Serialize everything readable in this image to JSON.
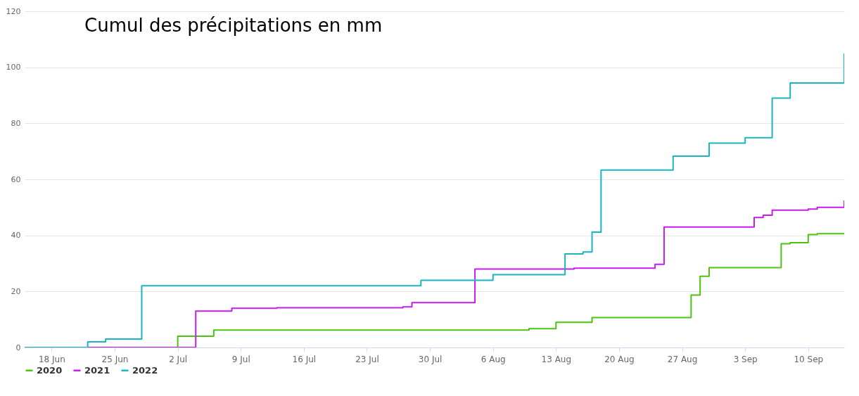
{
  "chart_data": {
    "type": "step",
    "title": "Cumul des précipitations en mm",
    "xlim": [
      "--06-15",
      "--09-14"
    ],
    "xticks": [
      {
        "value": "--06-18",
        "label": "18 Jun"
      },
      {
        "value": "--06-25",
        "label": "25 Jun"
      },
      {
        "value": "--07-02",
        "label": "2 Jul"
      },
      {
        "value": "--07-09",
        "label": "9 Jul"
      },
      {
        "value": "--07-16",
        "label": "16 Jul"
      },
      {
        "value": "--07-23",
        "label": "23 Jul"
      },
      {
        "value": "--07-30",
        "label": "30 Jul"
      },
      {
        "value": "--08-06",
        "label": "6 Aug"
      },
      {
        "value": "--08-13",
        "label": "13 Aug"
      },
      {
        "value": "--08-20",
        "label": "20 Aug"
      },
      {
        "value": "--08-27",
        "label": "27 Aug"
      },
      {
        "value": "--09-03",
        "label": "3 Sep"
      },
      {
        "value": "--09-10",
        "label": "10 Sep"
      }
    ],
    "ylim": [
      0,
      120
    ],
    "yticks": [
      0,
      20,
      40,
      60,
      80,
      100,
      120
    ],
    "grid": "y",
    "legend": "bottom",
    "marker": "none",
    "line_style": "solid",
    "series": [
      {
        "name": "2020",
        "color": "#4cc30f",
        "x": [
          "--06-15",
          "--07-02",
          "--07-06",
          "--08-10",
          "--08-13",
          "--08-17",
          "--08-28",
          "--08-29",
          "--08-30",
          "--09-07",
          "--09-08",
          "--09-10",
          "--09-11",
          "--09-14"
        ],
        "values": [
          0,
          4,
          6.2,
          6.7,
          9,
          10.7,
          18.7,
          25.4,
          28.5,
          37,
          37.4,
          40.3,
          40.6,
          40.6
        ]
      },
      {
        "name": "2021",
        "color": "#c41ee8",
        "x": [
          "--06-15",
          "--07-04",
          "--07-08",
          "--07-13",
          "--07-27",
          "--07-28",
          "--08-04",
          "--08-15",
          "--08-24",
          "--08-25",
          "--09-04",
          "--09-05",
          "--09-06",
          "--09-10",
          "--09-11",
          "--09-14"
        ],
        "values": [
          0,
          13,
          14,
          14.2,
          14.5,
          16,
          28,
          28.3,
          29.7,
          43,
          46.4,
          47.2,
          49,
          49.4,
          50,
          52.5
        ]
      },
      {
        "name": "2022",
        "color": "#1ab5bf",
        "x": [
          "--06-15",
          "--06-22",
          "--06-24",
          "--06-28",
          "--07-29",
          "--08-06",
          "--08-14",
          "--08-16",
          "--08-17",
          "--08-18",
          "--08-26",
          "--08-30",
          "--09-03",
          "--09-06",
          "--09-08",
          "--09-14"
        ],
        "values": [
          0,
          2,
          3,
          22,
          24,
          26,
          33.4,
          34.1,
          41.2,
          63.3,
          68.3,
          72.9,
          74.9,
          89,
          94.4,
          105
        ]
      }
    ]
  }
}
